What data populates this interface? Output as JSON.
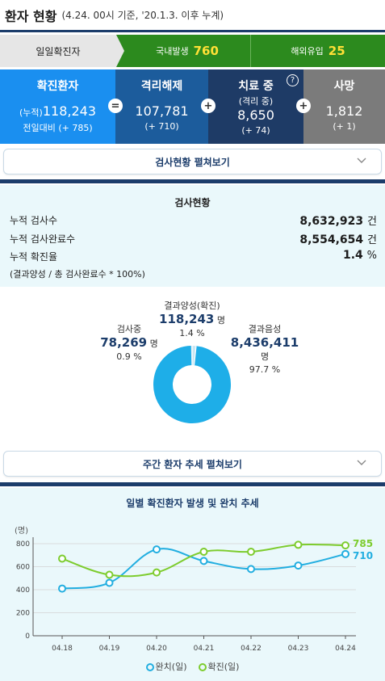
{
  "header": {
    "title": "환자 현황",
    "subtitle": "(4.24. 00시 기준, '20.1.3. 이후 누계)"
  },
  "daily": {
    "label": "일일확진자",
    "domestic_label": "국내발생",
    "domestic_value": "760",
    "overseas_label": "해외유입",
    "overseas_value": "25"
  },
  "stats": {
    "confirmed": {
      "title": "확진환자",
      "prefix": "(누적)",
      "value": "118,243",
      "diff": "전일대비 (+ 785)"
    },
    "released": {
      "title": "격리해제",
      "value": "107,781",
      "diff": "(+ 710)"
    },
    "treatment": {
      "title": "치료 중",
      "sub": "(격리 중)",
      "value": "8,650",
      "diff": "(+ 74)"
    },
    "deaths": {
      "title": "사망",
      "value": "1,812",
      "diff": "(+ 1)"
    },
    "op_equals": "=",
    "op_plus": "+",
    "help_symbol": "?"
  },
  "test_expander": {
    "label": "검사현황 펼쳐보기"
  },
  "tests": {
    "title": "검사현황",
    "rows": [
      {
        "label": "누적 검사수",
        "value": "8,632,923",
        "unit": "건"
      },
      {
        "label": "누적 검사완료수",
        "value": "8,554,654",
        "unit": "건"
      },
      {
        "label": "누적 확진율",
        "value": "1.4",
        "unit": "%"
      }
    ],
    "note": "(결과양성 / 총 검사완료수 * 100%)"
  },
  "donut": {
    "positive": {
      "label": "결과양성(확진)",
      "value": "118,243",
      "unit": "명",
      "pct": "1.4 %"
    },
    "testing": {
      "label": "검사중",
      "value": "78,269",
      "unit": "명",
      "pct": "0.9 %"
    },
    "negative": {
      "label": "결과음성",
      "value": "8,436,411",
      "unit": "명",
      "pct": "97.7 %"
    },
    "fractions": {
      "positive": 0.014,
      "testing": 0.009,
      "negative": 0.977
    },
    "colors": {
      "negative": "#1eaee8",
      "other": "#c9e6f3"
    }
  },
  "weekly_expander": {
    "label": "주간 환자 추세 펼쳐보기"
  },
  "chart_data": {
    "type": "line",
    "title": "일별 확진환자 발생 및 완치 추세",
    "ylabel": "(명)",
    "categories": [
      "04.18",
      "04.19",
      "04.20",
      "04.21",
      "04.22",
      "04.23",
      "04.24"
    ],
    "yticks": [
      "0",
      "200",
      "400",
      "600",
      "800"
    ],
    "ylim": [
      0,
      800
    ],
    "grid": true,
    "series": [
      {
        "name": "완치(일)",
        "values": [
          410,
          460,
          750,
          650,
          580,
          610,
          710
        ],
        "color": "#22aee0",
        "end_label": "710"
      },
      {
        "name": "확진(일)",
        "values": [
          670,
          530,
          550,
          730,
          730,
          790,
          785
        ],
        "color": "#7dcc2e",
        "end_label": "785"
      }
    ]
  }
}
